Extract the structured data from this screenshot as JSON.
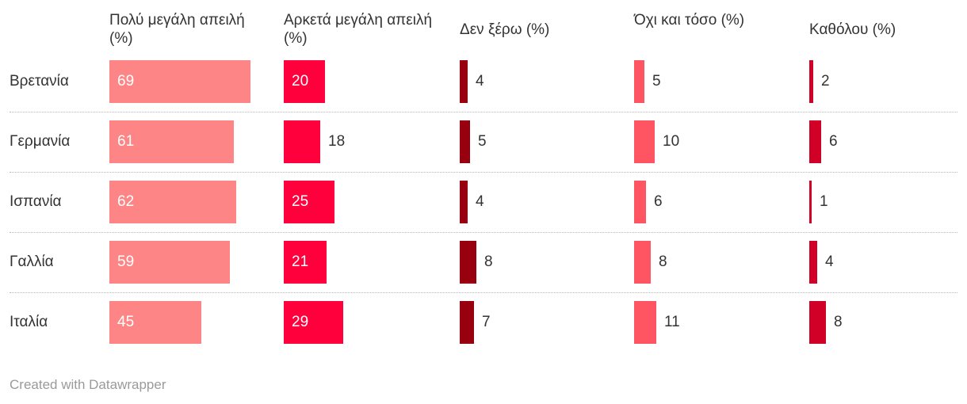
{
  "chart_data": {
    "type": "table",
    "columns": [
      {
        "label": "Πολύ μεγάλη απειλή (%)",
        "color": "#fe8585",
        "max": 69
      },
      {
        "label": "Αρκετά μεγάλη απειλή (%)",
        "color": "#ff003d",
        "max": 69
      },
      {
        "label": "Δεν ξέρω (%)",
        "color": "#99000f",
        "max": 69
      },
      {
        "label": "Όχι και τόσο (%)",
        "color": "#ff5462",
        "max": 69
      },
      {
        "label": "Καθόλου (%)",
        "color": "#d10027",
        "max": 69
      }
    ],
    "rows": [
      {
        "label": "Βρετανία",
        "values": [
          69,
          20,
          4,
          5,
          2
        ]
      },
      {
        "label": "Γερμανία",
        "values": [
          61,
          18,
          5,
          10,
          6
        ]
      },
      {
        "label": "Ισπανία",
        "values": [
          62,
          25,
          4,
          6,
          1
        ]
      },
      {
        "label": "Γαλλία",
        "values": [
          59,
          21,
          8,
          8,
          4
        ]
      },
      {
        "label": "Ιταλία",
        "values": [
          45,
          29,
          7,
          11,
          8
        ]
      }
    ]
  },
  "footer": "Created with Datawrapper"
}
